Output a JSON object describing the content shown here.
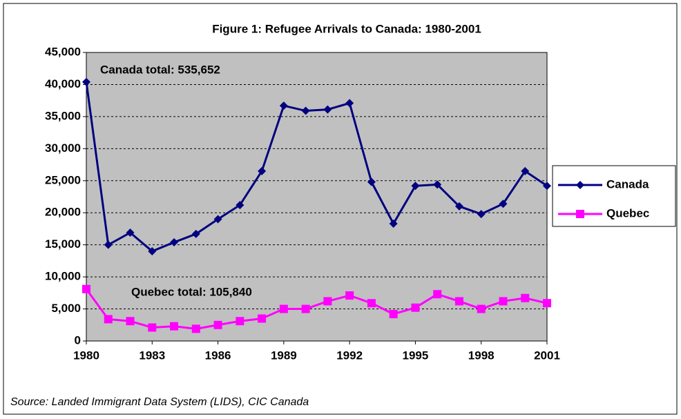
{
  "chart_data": {
    "type": "line",
    "title": "Figure 1: Refugee Arrivals to Canada: 1980-2001",
    "x": [
      1980,
      1981,
      1982,
      1983,
      1984,
      1985,
      1986,
      1987,
      1988,
      1989,
      1990,
      1991,
      1992,
      1993,
      1994,
      1995,
      1996,
      1997,
      1998,
      1999,
      2000,
      2001
    ],
    "series": [
      {
        "name": "Canada",
        "color": "#000080",
        "marker": "diamond",
        "values": [
          40400,
          15000,
          16900,
          14000,
          15400,
          16700,
          19000,
          21200,
          26500,
          36700,
          35900,
          36100,
          37100,
          24800,
          18300,
          24200,
          24400,
          21000,
          19800,
          21400,
          26500,
          24200
        ]
      },
      {
        "name": "Quebec",
        "color": "#ff00ff",
        "marker": "square",
        "values": [
          8100,
          3400,
          3100,
          2100,
          2300,
          1900,
          2500,
          3100,
          3500,
          5000,
          5000,
          6200,
          7100,
          5900,
          4200,
          5200,
          7300,
          6200,
          5000,
          6200,
          6700,
          5900
        ]
      }
    ],
    "xlim": [
      1980,
      2001
    ],
    "xticks": [
      1980,
      1983,
      1986,
      1989,
      1992,
      1995,
      1998,
      2001
    ],
    "ylim": [
      0,
      45000
    ],
    "yticks": [
      0,
      {
        "value": 5000,
        "label": "5,000"
      },
      {
        "value": 10000,
        "label": "10,000"
      },
      {
        "value": 15000,
        "label": "15,000"
      },
      {
        "value": 20000,
        "label": "20,000"
      },
      {
        "value": 25000,
        "label": "25,000"
      },
      {
        "value": 30000,
        "label": "30,000"
      },
      {
        "value": 35000,
        "label": "35,000"
      },
      {
        "value": 40000,
        "label": "40,000"
      },
      {
        "value": 45000,
        "label": "45,000"
      }
    ],
    "grid": true,
    "legend": "right",
    "plot_background": "#c0c0c0",
    "annotations": [
      "Canada total: 535,652",
      "Quebec total: 105,840"
    ],
    "source": "Source: Landed Immigrant Data System (LIDS), CIC Canada"
  }
}
